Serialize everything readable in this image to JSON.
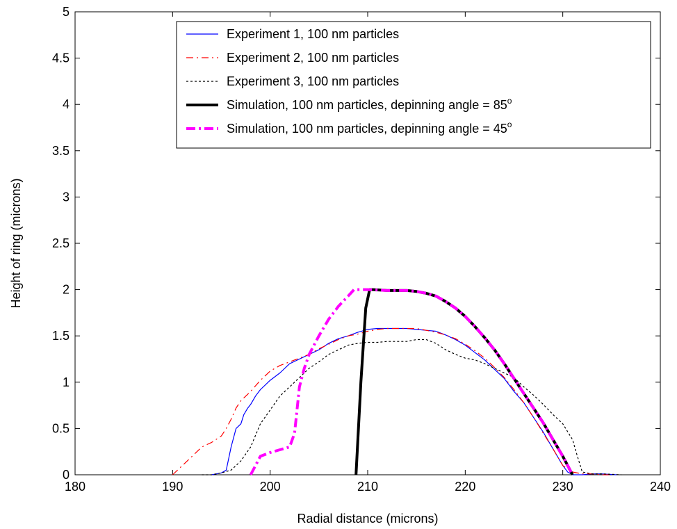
{
  "chart_data": {
    "type": "line",
    "xlabel": "Radial distance (microns)",
    "ylabel": "Height of ring (microns)",
    "xlim": [
      180,
      240
    ],
    "ylim": [
      0,
      5
    ],
    "xticks": [
      180,
      190,
      200,
      210,
      220,
      230,
      240
    ],
    "yticks": [
      0,
      0.5,
      1,
      1.5,
      2,
      2.5,
      3,
      3.5,
      4,
      4.5,
      5
    ],
    "xtick_labels": [
      "180",
      "190",
      "200",
      "210",
      "220",
      "230",
      "240"
    ],
    "ytick_labels": [
      "0",
      "0.5",
      "1",
      "1.5",
      "2",
      "2.5",
      "3",
      "3.5",
      "4",
      "4.5",
      "5"
    ],
    "grid": false,
    "legend_position": "top-right",
    "series": [
      {
        "name": "Experiment 1, 100 nm particles",
        "name_suffix": "",
        "color": "#0000ff",
        "style": "solid",
        "width": 1.2,
        "x": [
          194,
          195,
          195.5,
          196,
          196.5,
          197,
          197.3,
          197.7,
          198,
          198.5,
          199,
          200,
          201,
          202,
          203,
          204,
          205,
          206,
          207,
          208,
          209,
          210,
          211,
          212,
          213,
          214,
          215,
          216,
          217,
          218,
          219,
          220,
          221,
          222,
          223,
          224,
          225,
          226,
          227,
          228,
          229,
          230,
          230.5,
          231,
          232,
          233,
          234,
          235.5
        ],
        "y": [
          0,
          0.02,
          0.05,
          0.3,
          0.5,
          0.55,
          0.65,
          0.72,
          0.76,
          0.85,
          0.92,
          1.02,
          1.1,
          1.2,
          1.25,
          1.3,
          1.35,
          1.42,
          1.47,
          1.5,
          1.54,
          1.57,
          1.58,
          1.58,
          1.58,
          1.58,
          1.57,
          1.56,
          1.55,
          1.51,
          1.46,
          1.4,
          1.32,
          1.24,
          1.14,
          1.04,
          0.9,
          0.78,
          0.62,
          0.46,
          0.28,
          0.1,
          0.03,
          0,
          0,
          0.01,
          0.01,
          0
        ]
      },
      {
        "name": "Experiment 2, 100 nm particles",
        "name_suffix": "",
        "color": "#ff0000",
        "style": "dashdot",
        "width": 1.2,
        "x": [
          190,
          191,
          192,
          193,
          194,
          195,
          195.5,
          196,
          196.5,
          197,
          198,
          199,
          200,
          201,
          202,
          203,
          204,
          205,
          206,
          207,
          208,
          209,
          210,
          211,
          212,
          213,
          214,
          215,
          216,
          217,
          218,
          219,
          220,
          221,
          222,
          223,
          224,
          225,
          226,
          227,
          228,
          229,
          230,
          231,
          232,
          233,
          234,
          235
        ],
        "y": [
          0,
          0.1,
          0.2,
          0.3,
          0.35,
          0.42,
          0.5,
          0.6,
          0.72,
          0.8,
          0.9,
          1.02,
          1.12,
          1.18,
          1.22,
          1.26,
          1.3,
          1.36,
          1.41,
          1.46,
          1.5,
          1.52,
          1.55,
          1.57,
          1.58,
          1.58,
          1.58,
          1.58,
          1.56,
          1.54,
          1.51,
          1.47,
          1.41,
          1.34,
          1.26,
          1.16,
          1.05,
          0.92,
          0.78,
          0.62,
          0.45,
          0.28,
          0.1,
          0.03,
          0.01,
          0.01,
          0,
          0
        ]
      },
      {
        "name": "Experiment 3, 100 nm particles",
        "name_suffix": "",
        "color": "#000000",
        "style": "dotted",
        "width": 1.2,
        "x": [
          193,
          194,
          195,
          196,
          197,
          198,
          199,
          200,
          201,
          202,
          203,
          204,
          205,
          206,
          207,
          208,
          209,
          210,
          211,
          212,
          213,
          214,
          215,
          216,
          217,
          218,
          219,
          220,
          221,
          222,
          223,
          224,
          225,
          226,
          227,
          228,
          229,
          230,
          231,
          231.5,
          232,
          233,
          234,
          236
        ],
        "y": [
          0,
          0,
          0.02,
          0.05,
          0.15,
          0.3,
          0.55,
          0.7,
          0.85,
          0.95,
          1.05,
          1.15,
          1.22,
          1.3,
          1.35,
          1.4,
          1.42,
          1.43,
          1.43,
          1.44,
          1.44,
          1.44,
          1.46,
          1.46,
          1.42,
          1.35,
          1.3,
          1.26,
          1.24,
          1.2,
          1.15,
          1.1,
          1.05,
          0.95,
          0.86,
          0.76,
          0.65,
          0.55,
          0.38,
          0.2,
          0.03,
          0.01,
          0.01,
          0
        ]
      },
      {
        "name": "Simulation, 100 nm particles, depinning angle = 85",
        "name_suffix": "o",
        "color": "#000000",
        "style": "solid",
        "width": 4,
        "x": [
          208.8,
          209.3,
          209.8,
          210.2,
          210.5,
          212,
          214,
          215,
          216,
          217,
          218,
          219,
          220,
          221,
          222,
          223,
          224,
          225,
          226,
          227,
          228,
          229,
          230,
          230.5,
          231
        ],
        "y": [
          0,
          1.0,
          1.8,
          2.0,
          2.0,
          1.99,
          1.99,
          1.98,
          1.96,
          1.93,
          1.87,
          1.8,
          1.71,
          1.6,
          1.48,
          1.35,
          1.2,
          1.04,
          0.88,
          0.72,
          0.56,
          0.38,
          0.2,
          0.1,
          0
        ]
      },
      {
        "name": "Simulation, 100 nm particles, depinning angle = 45",
        "name_suffix": "o",
        "color": "#ff00ff",
        "style": "dashdot",
        "width": 4,
        "x": [
          198,
          198.5,
          199,
          200,
          201,
          202,
          202.5,
          203,
          203.5,
          204,
          205,
          206,
          207,
          208,
          208.6,
          209,
          210,
          212,
          214,
          215,
          216,
          217,
          218,
          219,
          220,
          221,
          222,
          223,
          224,
          225,
          226,
          227,
          228,
          229,
          230,
          230.5,
          231
        ],
        "y": [
          0,
          0.1,
          0.2,
          0.24,
          0.27,
          0.3,
          0.45,
          0.95,
          1.15,
          1.3,
          1.5,
          1.68,
          1.82,
          1.93,
          2.0,
          2.0,
          2.0,
          1.99,
          1.99,
          1.98,
          1.96,
          1.93,
          1.87,
          1.8,
          1.71,
          1.6,
          1.48,
          1.35,
          1.2,
          1.04,
          0.88,
          0.72,
          0.56,
          0.38,
          0.2,
          0.1,
          0
        ]
      }
    ]
  }
}
